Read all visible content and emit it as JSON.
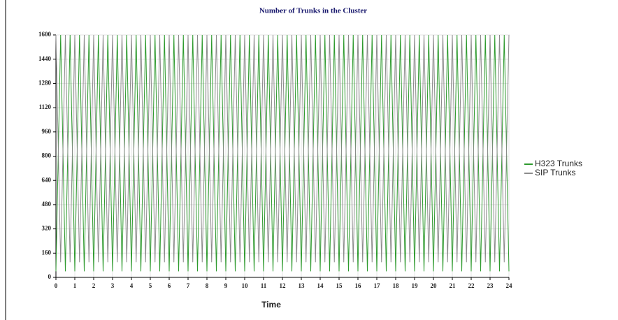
{
  "chart_data": {
    "type": "line",
    "title": "Number of Trunks in the Cluster",
    "x_label": "Time",
    "x": [
      0,
      0.25,
      0.5,
      0.75,
      1,
      1.25,
      1.5,
      1.75,
      2,
      2.25,
      2.5,
      2.75,
      3,
      3.25,
      3.5,
      3.75,
      4,
      4.25,
      4.5,
      4.75,
      5,
      5.25,
      5.5,
      5.75,
      6,
      6.25,
      6.5,
      6.75,
      7,
      7.25,
      7.5,
      7.75,
      8,
      8.25,
      8.5,
      8.75,
      9,
      9.25,
      9.5,
      9.75,
      10,
      10.25,
      10.5,
      10.75,
      11,
      11.25,
      11.5,
      11.75,
      12,
      12.25,
      12.5,
      12.75,
      13,
      13.25,
      13.5,
      13.75,
      14,
      14.25,
      14.5,
      14.75,
      15,
      15.25,
      15.5,
      15.75,
      16,
      16.25,
      16.5,
      16.75,
      17,
      17.25,
      17.5,
      17.75,
      18,
      18.25,
      18.5,
      18.75,
      19,
      19.25,
      19.5,
      19.75,
      20,
      20.25,
      20.5,
      20.75,
      21,
      21.25,
      21.5,
      21.75,
      22,
      22.25,
      22.5,
      22.75,
      23,
      23.25,
      23.5,
      23.75,
      24
    ],
    "series": [
      {
        "name": "H323 Trunks",
        "color": "#2e9a2e",
        "values": [
          40,
          1600,
          40,
          1600,
          40,
          1600,
          40,
          1600,
          40,
          1600,
          40,
          1600,
          40,
          1600,
          40,
          1600,
          40,
          1600,
          40,
          1600,
          40,
          1600,
          40,
          1600,
          40,
          1600,
          40,
          1600,
          40,
          1600,
          40,
          1600,
          40,
          1600,
          40,
          1600,
          40,
          1600,
          40,
          1600,
          40,
          1600,
          40,
          1600,
          40,
          1600,
          40,
          1600,
          40,
          1600,
          40,
          1600,
          40,
          1600,
          40,
          1600,
          40,
          1600,
          40,
          1600,
          40,
          1600,
          40,
          1600,
          40,
          1600,
          40,
          1600,
          40,
          1600,
          40,
          1600,
          40,
          1600,
          40,
          1600,
          40,
          1600,
          40,
          1600,
          40,
          1600,
          40,
          1600,
          40,
          1600,
          40,
          1600,
          40,
          1600,
          40,
          1600,
          40,
          1600,
          40,
          1600,
          40
        ]
      },
      {
        "name": "SIP Trunks",
        "color": "#8c8c8c",
        "values": [
          1600,
          100,
          1600,
          100,
          1600,
          100,
          1600,
          100,
          1600,
          100,
          1600,
          100,
          1600,
          100,
          1600,
          100,
          1600,
          100,
          1600,
          100,
          1600,
          100,
          1600,
          100,
          1600,
          100,
          1600,
          100,
          1600,
          100,
          1600,
          100,
          1600,
          100,
          1600,
          100,
          1600,
          100,
          1600,
          100,
          1600,
          100,
          1600,
          100,
          1600,
          100,
          1600,
          100,
          1600,
          100,
          1600,
          100,
          1600,
          100,
          1600,
          100,
          1600,
          100,
          1600,
          100,
          1600,
          100,
          1600,
          100,
          1600,
          100,
          1600,
          100,
          1600,
          100,
          1600,
          100,
          1600,
          100,
          1600,
          100,
          1600,
          100,
          1600,
          100,
          1600,
          100,
          1600,
          100,
          1600,
          100,
          1600,
          100,
          1600,
          100,
          1600,
          100,
          1600,
          100,
          1600,
          100,
          1600
        ]
      }
    ],
    "xlim": [
      0,
      24
    ],
    "xticks": [
      0,
      1,
      2,
      3,
      4,
      5,
      6,
      7,
      8,
      9,
      10,
      11,
      12,
      13,
      14,
      15,
      16,
      17,
      18,
      19,
      20,
      21,
      22,
      23,
      24
    ],
    "ylim": [
      0,
      1600
    ],
    "yticks": [
      0,
      160,
      320,
      480,
      640,
      800,
      960,
      1120,
      1280,
      1440,
      1600
    ],
    "grid": true
  }
}
